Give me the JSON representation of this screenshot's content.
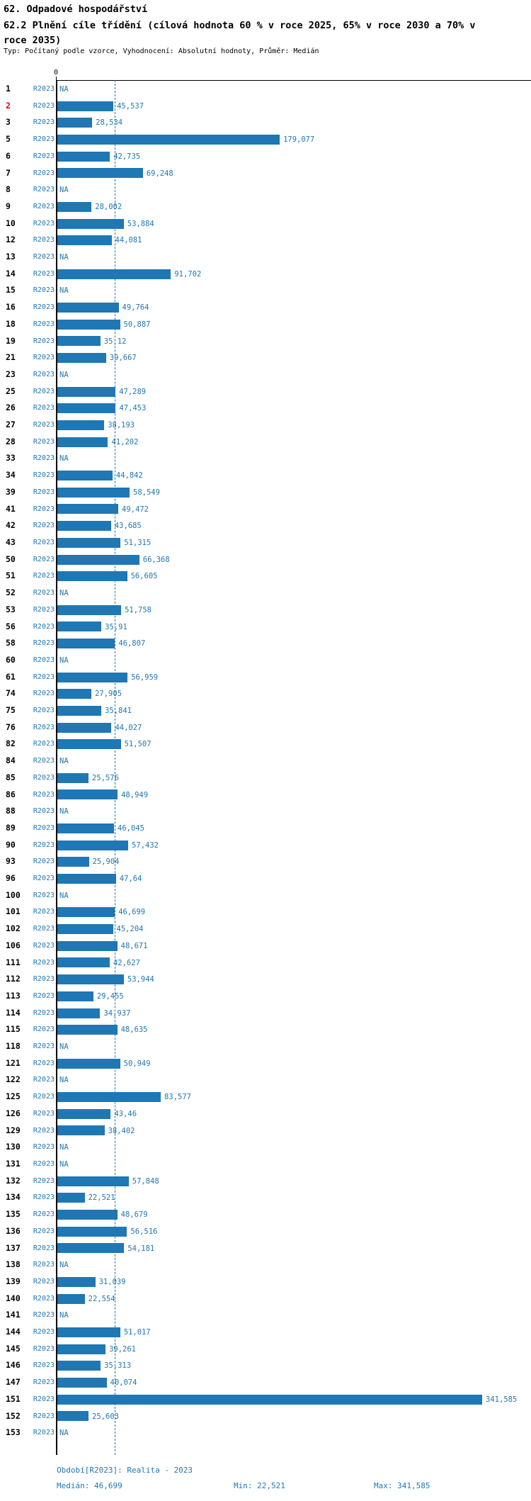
{
  "header": {
    "title_line1": "62. Odpadové hospodářství",
    "title_line2": "62.2 Plnění cíle třídění (cílová hodnota 60 % v roce 2025, 65% v roce 2030 a 70% v roce 2035)",
    "meta": "Typ: Počítaný podle vzorce, Vyhodnocení: Absolutní hodnoty, Průměr: Medián"
  },
  "axis": {
    "zero_label": "0",
    "period_label": "R2023",
    "na_label": "NA"
  },
  "colors": {
    "bar_blue": "#1f77b4",
    "text_blue": "#1f77b4",
    "row_number_black": "#000000",
    "highlight_red": "#dd0000"
  },
  "footer": {
    "period_line": "Období[R2023]: Realita - 2023",
    "median": "Medián: 46,699",
    "min": "Min: 22,521",
    "max": "Max: 341,585"
  },
  "chart_data": {
    "type": "bar",
    "orientation": "horizontal",
    "title": "62.2 Plnění cíle třídění",
    "value_axis_start": 0,
    "median_value": 46.699,
    "min_value": 22.521,
    "max_value": 341.585,
    "series_label": "R2023",
    "rows": [
      {
        "num": "1",
        "value": "NA"
      },
      {
        "num": "2",
        "value": "45,537",
        "highlight": true
      },
      {
        "num": "3",
        "value": "28,534"
      },
      {
        "num": "5",
        "value": "179,077"
      },
      {
        "num": "6",
        "value": "42,735"
      },
      {
        "num": "7",
        "value": "69,248"
      },
      {
        "num": "8",
        "value": "NA"
      },
      {
        "num": "9",
        "value": "28,002"
      },
      {
        "num": "10",
        "value": "53,884"
      },
      {
        "num": "12",
        "value": "44,081"
      },
      {
        "num": "13",
        "value": "NA"
      },
      {
        "num": "14",
        "value": "91,702"
      },
      {
        "num": "15",
        "value": "NA"
      },
      {
        "num": "16",
        "value": "49,764"
      },
      {
        "num": "18",
        "value": "50,887"
      },
      {
        "num": "19",
        "value": "35,12"
      },
      {
        "num": "21",
        "value": "39,667"
      },
      {
        "num": "23",
        "value": "NA"
      },
      {
        "num": "25",
        "value": "47,289"
      },
      {
        "num": "26",
        "value": "47,453"
      },
      {
        "num": "27",
        "value": "38,193"
      },
      {
        "num": "28",
        "value": "41,202"
      },
      {
        "num": "33",
        "value": "NA"
      },
      {
        "num": "34",
        "value": "44,842"
      },
      {
        "num": "39",
        "value": "58,549"
      },
      {
        "num": "41",
        "value": "49,472"
      },
      {
        "num": "42",
        "value": "43,685"
      },
      {
        "num": "43",
        "value": "51,315"
      },
      {
        "num": "50",
        "value": "66,368"
      },
      {
        "num": "51",
        "value": "56,605"
      },
      {
        "num": "52",
        "value": "NA"
      },
      {
        "num": "53",
        "value": "51,758"
      },
      {
        "num": "56",
        "value": "35,91"
      },
      {
        "num": "58",
        "value": "46,807"
      },
      {
        "num": "60",
        "value": "NA"
      },
      {
        "num": "61",
        "value": "56,959"
      },
      {
        "num": "74",
        "value": "27,905"
      },
      {
        "num": "75",
        "value": "35,841"
      },
      {
        "num": "76",
        "value": "44,027"
      },
      {
        "num": "82",
        "value": "51,507"
      },
      {
        "num": "84",
        "value": "NA"
      },
      {
        "num": "85",
        "value": "25,576"
      },
      {
        "num": "86",
        "value": "48,949"
      },
      {
        "num": "88",
        "value": "NA"
      },
      {
        "num": "89",
        "value": "46,045"
      },
      {
        "num": "90",
        "value": "57,432"
      },
      {
        "num": "93",
        "value": "25,904"
      },
      {
        "num": "96",
        "value": "47,64"
      },
      {
        "num": "100",
        "value": "NA"
      },
      {
        "num": "101",
        "value": "46,699"
      },
      {
        "num": "102",
        "value": "45,204"
      },
      {
        "num": "106",
        "value": "48,671"
      },
      {
        "num": "111",
        "value": "42,627"
      },
      {
        "num": "112",
        "value": "53,944"
      },
      {
        "num": "113",
        "value": "29,455"
      },
      {
        "num": "114",
        "value": "34,937"
      },
      {
        "num": "115",
        "value": "48,635"
      },
      {
        "num": "118",
        "value": "NA"
      },
      {
        "num": "121",
        "value": "50,949"
      },
      {
        "num": "122",
        "value": "NA"
      },
      {
        "num": "125",
        "value": "83,577"
      },
      {
        "num": "126",
        "value": "43,46"
      },
      {
        "num": "129",
        "value": "38,402"
      },
      {
        "num": "130",
        "value": "NA"
      },
      {
        "num": "131",
        "value": "NA"
      },
      {
        "num": "132",
        "value": "57,848"
      },
      {
        "num": "134",
        "value": "22,521"
      },
      {
        "num": "135",
        "value": "48,679"
      },
      {
        "num": "136",
        "value": "56,516"
      },
      {
        "num": "137",
        "value": "54,181"
      },
      {
        "num": "138",
        "value": "NA"
      },
      {
        "num": "139",
        "value": "31,039"
      },
      {
        "num": "140",
        "value": "22,554"
      },
      {
        "num": "141",
        "value": "NA"
      },
      {
        "num": "144",
        "value": "51,017"
      },
      {
        "num": "145",
        "value": "39,261"
      },
      {
        "num": "146",
        "value": "35,313"
      },
      {
        "num": "147",
        "value": "40,074"
      },
      {
        "num": "151",
        "value": "341,585"
      },
      {
        "num": "152",
        "value": "25,603"
      },
      {
        "num": "153",
        "value": "NA"
      }
    ]
  }
}
